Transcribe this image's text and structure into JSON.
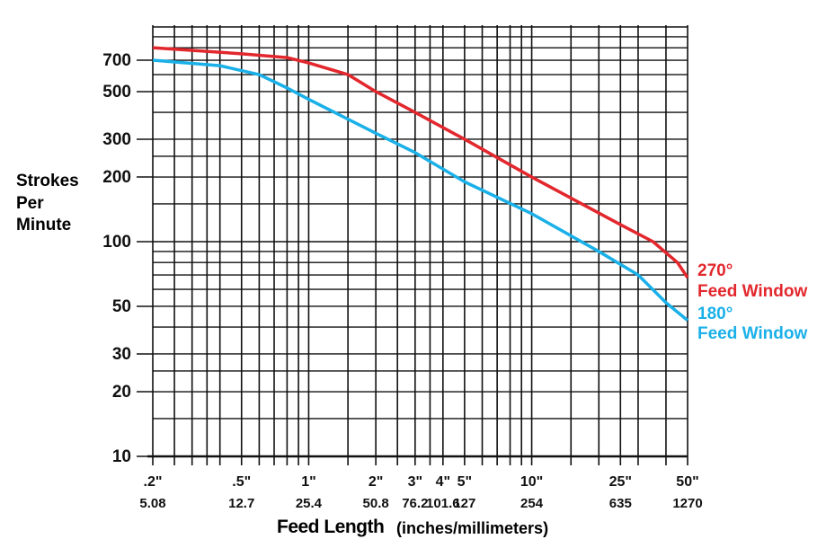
{
  "chart_data": {
    "type": "line",
    "ylabel": "Strokes Per Minute",
    "xlabel": "Feed Length",
    "xlabel_units": "(inches/millimeters)",
    "log_x": true,
    "log_y": true,
    "grid": true,
    "xlim": [
      0.2,
      50
    ],
    "ylim": [
      10,
      1000
    ],
    "xticks": [
      {
        "value": 0.2,
        "label": ".2\""
      },
      {
        "value": 0.5,
        "label": ".5\""
      },
      {
        "value": 1,
        "label": "1\""
      },
      {
        "value": 2,
        "label": "2\""
      },
      {
        "value": 3,
        "label": "3\""
      },
      {
        "value": 4,
        "label": "4\""
      },
      {
        "value": 5,
        "label": "5\""
      },
      {
        "value": 10,
        "label": "10\""
      },
      {
        "value": 25,
        "label": "25\""
      },
      {
        "value": 50,
        "label": "50\""
      }
    ],
    "xticks_mm": [
      {
        "value": 0.2,
        "label": "5.08"
      },
      {
        "value": 0.5,
        "label": "12.7"
      },
      {
        "value": 1,
        "label": "25.4"
      },
      {
        "value": 2,
        "label": "50.8"
      },
      {
        "value": 3,
        "label": "76.2"
      },
      {
        "value": 4,
        "label": "101.6"
      },
      {
        "value": 5,
        "label": "127"
      },
      {
        "value": 10,
        "label": "254"
      },
      {
        "value": 25,
        "label": "635"
      },
      {
        "value": 50,
        "label": "1270"
      }
    ],
    "yticks": [
      10,
      20,
      30,
      50,
      100,
      200,
      300,
      500,
      700
    ],
    "x_gridlines": [
      0.2,
      0.25,
      0.3,
      0.35,
      0.4,
      0.5,
      0.6,
      0.7,
      0.8,
      0.9,
      1,
      1.5,
      2,
      2.5,
      3,
      3.5,
      4,
      5,
      6,
      7,
      8,
      9,
      10,
      15,
      20,
      25,
      30,
      40,
      50
    ],
    "y_gridlines": [
      10,
      15,
      20,
      25,
      30,
      40,
      50,
      60,
      70,
      80,
      90,
      100,
      150,
      200,
      250,
      300,
      400,
      500,
      600,
      700,
      800,
      900,
      1000
    ],
    "series": [
      {
        "name": "270°\nFeed Window",
        "color": "#e2272d",
        "x": [
          0.2,
          0.5,
          0.8,
          1,
          1.5,
          2,
          3,
          5,
          10,
          25,
          35,
          45,
          50
        ],
        "values": [
          800,
          750,
          720,
          680,
          600,
          500,
          400,
          300,
          200,
          120,
          100,
          80,
          68
        ]
      },
      {
        "name": "180°\nFeed Window",
        "color": "#1ab0e8",
        "x": [
          0.2,
          0.4,
          0.6,
          0.8,
          1,
          2,
          3,
          5,
          10,
          20,
          30,
          40,
          50
        ],
        "values": [
          700,
          660,
          600,
          520,
          460,
          320,
          260,
          190,
          135,
          90,
          70,
          52,
          43
        ]
      }
    ]
  }
}
